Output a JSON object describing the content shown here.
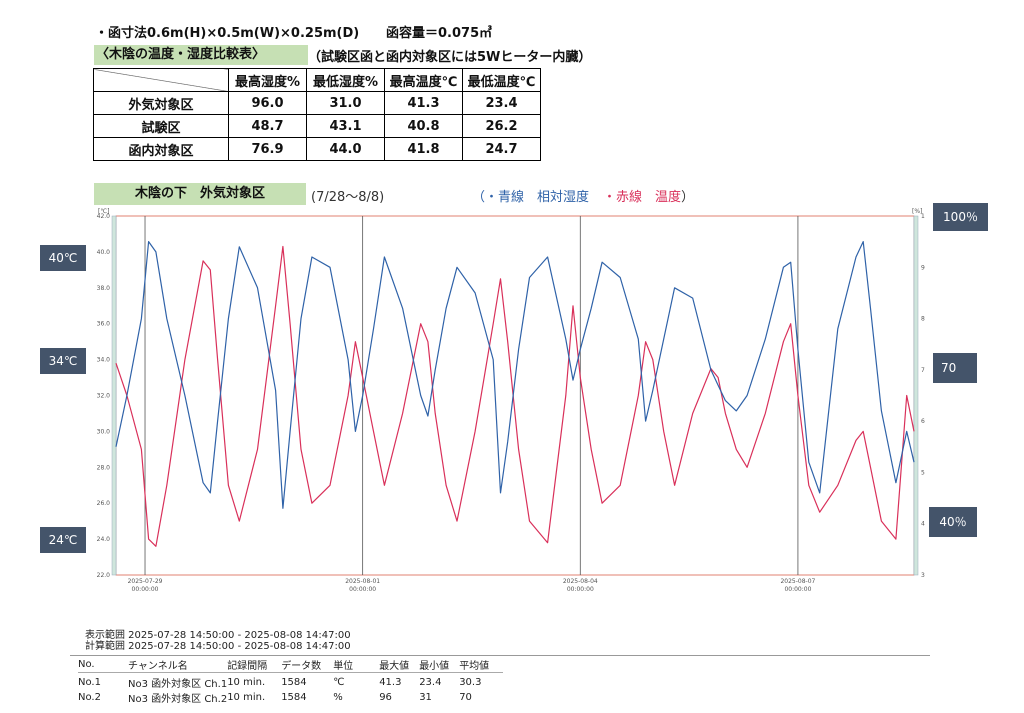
{
  "header": {
    "dimensions": "・函寸法0.6m(H)×0.5m(W)×0.25m(D)",
    "capacity": "函容量＝0.075㎥",
    "table_title": "〈木陰の温度・湿度比較表〉",
    "note": "（試験区函と函内対象区には5Wヒーター内臓）"
  },
  "comparison_table": {
    "columns": [
      "最高湿度%",
      "最低湿度%",
      "最高温度℃",
      "最低温度℃"
    ],
    "rows": [
      {
        "label": "外気対象区",
        "values": [
          "96.0",
          "31.0",
          "41.3",
          "23.4"
        ]
      },
      {
        "label": "試験区",
        "values": [
          "48.7",
          "43.1",
          "40.8",
          "26.2"
        ]
      },
      {
        "label": "函内対象区",
        "values": [
          "76.9",
          "44.0",
          "41.8",
          "24.7"
        ]
      }
    ]
  },
  "chart_header": {
    "title": "木陰の下　外気対象区",
    "range": "(7/28～8/8)",
    "legend_open": "（・",
    "legend_blue": "青線　相対湿度",
    "legend_sep": "・",
    "legend_red": "赤線　温度",
    "legend_close": "）"
  },
  "callouts": {
    "t40": "40℃",
    "t34": "34℃",
    "t24": "24℃",
    "h100": "100％",
    "h70": "70",
    "h40": "40％"
  },
  "chart_data": {
    "type": "line",
    "left_unit": "[℃]",
    "right_unit": "[%]",
    "y_left": {
      "range": [
        22.0,
        42.0
      ],
      "ticks": [
        "42.0",
        "40.0",
        "38.0",
        "36.0",
        "34.0",
        "32.0",
        "30.0",
        "28.0",
        "26.0",
        "24.0",
        "22.0"
      ]
    },
    "y_right": {
      "range": [
        30,
        100
      ],
      "ticks": [
        "100",
        "90",
        "80",
        "70",
        "60",
        "50",
        "40",
        "30"
      ]
    },
    "x_range": [
      0,
      11
    ],
    "x_ticks": [
      {
        "x": 0.4,
        "date": "2025-07-29",
        "time": "00:00:00"
      },
      {
        "x": 3.4,
        "date": "2025-08-01",
        "time": "00:00:00"
      },
      {
        "x": 6.4,
        "date": "2025-08-04",
        "time": "00:00:00"
      },
      {
        "x": 9.4,
        "date": "2025-08-07",
        "time": "00:00:00"
      }
    ],
    "series": [
      {
        "color": "#d9305a",
        "axis": "left",
        "x": [
          0,
          0.15,
          0.35,
          0.45,
          0.55,
          0.7,
          0.95,
          1.2,
          1.3,
          1.4,
          1.55,
          1.7,
          1.95,
          2.2,
          2.3,
          2.4,
          2.55,
          2.7,
          2.95,
          3.2,
          3.3,
          3.4,
          3.55,
          3.7,
          3.95,
          4.2,
          4.3,
          4.4,
          4.55,
          4.7,
          4.95,
          5.2,
          5.3,
          5.4,
          5.55,
          5.7,
          5.95,
          6.2,
          6.3,
          6.4,
          6.55,
          6.7,
          6.95,
          7.2,
          7.3,
          7.4,
          7.55,
          7.7,
          7.95,
          8.2,
          8.3,
          8.4,
          8.55,
          8.7,
          8.95,
          9.2,
          9.3,
          9.4,
          9.55,
          9.7,
          9.95,
          10.2,
          10.3,
          10.4,
          10.55,
          10.75,
          10.9,
          11.0
        ],
        "y": [
          33.8,
          32,
          29,
          24,
          23.6,
          27,
          34,
          39.5,
          39,
          34,
          27,
          25,
          29,
          37,
          40.3,
          36,
          29,
          26,
          27,
          32,
          35,
          33,
          30,
          27,
          31,
          36,
          35,
          31,
          27,
          25,
          30,
          36,
          38.5,
          35,
          29,
          25,
          23.8,
          32,
          37,
          33,
          29,
          26,
          27,
          32,
          35,
          34,
          30,
          27,
          31,
          33.5,
          33,
          31,
          29,
          28,
          31,
          35,
          36,
          32,
          27,
          25.5,
          27,
          29.5,
          30,
          28,
          25,
          24,
          32,
          30
        ]
      },
      {
        "color": "#2f62a8",
        "axis": "right",
        "x": [
          0,
          0.15,
          0.35,
          0.45,
          0.55,
          0.7,
          0.95,
          1.2,
          1.3,
          1.4,
          1.55,
          1.7,
          1.95,
          2.2,
          2.3,
          2.4,
          2.55,
          2.7,
          2.95,
          3.2,
          3.3,
          3.4,
          3.55,
          3.7,
          3.95,
          4.2,
          4.3,
          4.4,
          4.55,
          4.7,
          4.95,
          5.2,
          5.3,
          5.4,
          5.55,
          5.7,
          5.95,
          6.2,
          6.3,
          6.4,
          6.55,
          6.7,
          6.95,
          7.2,
          7.3,
          7.4,
          7.55,
          7.7,
          7.95,
          8.2,
          8.3,
          8.4,
          8.55,
          8.7,
          8.95,
          9.2,
          9.3,
          9.4,
          9.55,
          9.7,
          9.95,
          10.2,
          10.3,
          10.4,
          10.55,
          10.75,
          10.9,
          11.0
        ],
        "y": [
          55,
          65,
          80,
          95,
          93,
          80,
          65,
          48,
          46,
          60,
          80,
          94,
          86,
          66,
          43,
          58,
          80,
          92,
          90,
          72,
          58,
          65,
          78,
          92,
          82,
          65,
          61,
          70,
          82,
          90,
          85,
          72,
          46,
          56,
          74,
          88,
          92,
          76,
          68,
          74,
          82,
          91,
          88,
          76,
          60,
          66,
          76,
          86,
          84,
          70,
          67,
          64,
          62,
          65,
          76,
          90,
          91,
          74,
          52,
          46,
          78,
          92,
          95,
          82,
          62,
          48,
          58,
          52
        ]
      }
    ]
  },
  "footer": {
    "display_range": "表示範囲 2025-07-28 14:50:00 - 2025-08-08 14:47:00",
    "calc_range": "計算範囲 2025-07-28 14:50:00 - 2025-08-08 14:47:00",
    "stats_headers": [
      "No.",
      "チャンネル名",
      "記録間隔",
      "データ数",
      "単位",
      "最大値",
      "最小値",
      "平均値"
    ],
    "stats_rows": [
      [
        "No.1",
        "No3 函外対象区 Ch.1",
        "10 min.",
        "1584",
        "℃",
        "41.3",
        "23.4",
        "30.3"
      ],
      [
        "No.2",
        "No3 函外対象区 Ch.2",
        "10 min.",
        "1584",
        "%",
        "96",
        "31",
        "70"
      ]
    ]
  }
}
